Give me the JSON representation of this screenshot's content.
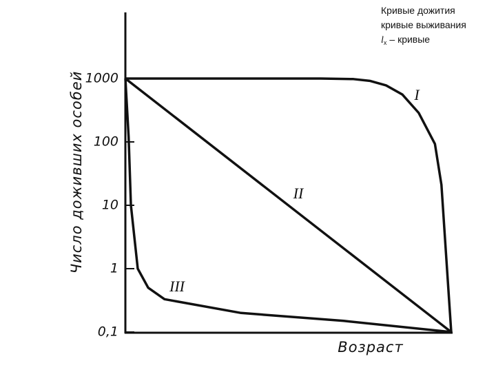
{
  "chart_data": {
    "type": "line",
    "y_label": "Число доживших особей",
    "x_label": "Возраст",
    "notes": [
      "Кривые дожития",
      "кривые выживания"
    ],
    "lx_note": {
      "symbol": "l",
      "subscript": "x",
      "text": "– кривые"
    },
    "log_y": true,
    "xlim": [
      0,
      100
    ],
    "ylim": [
      0.1,
      10000
    ],
    "yticks": [
      {
        "value": 0.1,
        "label": "0,1"
      },
      1,
      10,
      100,
      1000
    ],
    "color": "#111111",
    "series": [
      {
        "name": "I",
        "x": [
          0,
          20,
          40,
          60,
          70,
          75,
          80,
          85,
          90,
          95,
          97,
          98,
          100
        ],
        "values": [
          1000,
          1000,
          1000,
          1000,
          980,
          920,
          780,
          560,
          288,
          93,
          21,
          3.5,
          0.1
        ]
      },
      {
        "name": "II",
        "x": [
          0,
          100
        ],
        "values": [
          1000,
          0.1
        ]
      },
      {
        "name": "III",
        "x": [
          0,
          1,
          1.7,
          3.8,
          7,
          12,
          35.5,
          67,
          100
        ],
        "values": [
          1000,
          120,
          10,
          1,
          0.5,
          0.33,
          0.2,
          0.15,
          0.1
        ]
      }
    ]
  }
}
